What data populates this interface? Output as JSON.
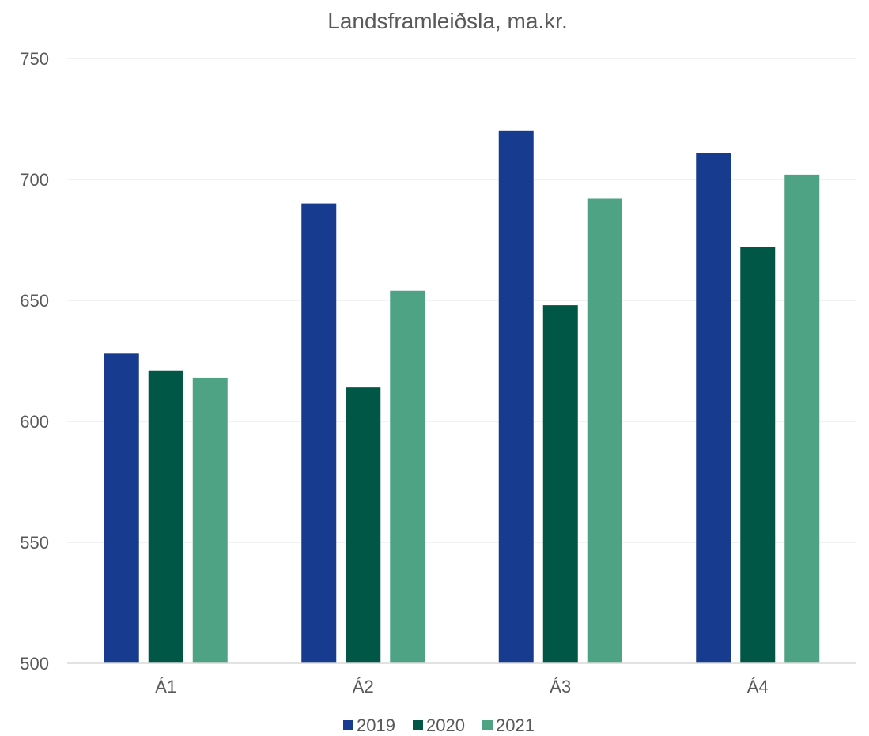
{
  "chart_data": {
    "type": "bar",
    "title": "Landsframleiðsla, ma.kr.",
    "xlabel": "",
    "ylabel": "",
    "categories": [
      "Á1",
      "Á2",
      "Á3",
      "Á4"
    ],
    "series": [
      {
        "name": "2019",
        "color": "#173b8f",
        "values": [
          628,
          690,
          720,
          711
        ]
      },
      {
        "name": "2020",
        "color": "#005745",
        "values": [
          621,
          614,
          648,
          672
        ]
      },
      {
        "name": "2021",
        "color": "#4ea385",
        "values": [
          618,
          654,
          692,
          702
        ]
      }
    ],
    "ylim": [
      500,
      750
    ],
    "yticks": [
      500,
      550,
      600,
      650,
      700,
      750
    ],
    "grid": true,
    "legend_position": "bottom"
  }
}
